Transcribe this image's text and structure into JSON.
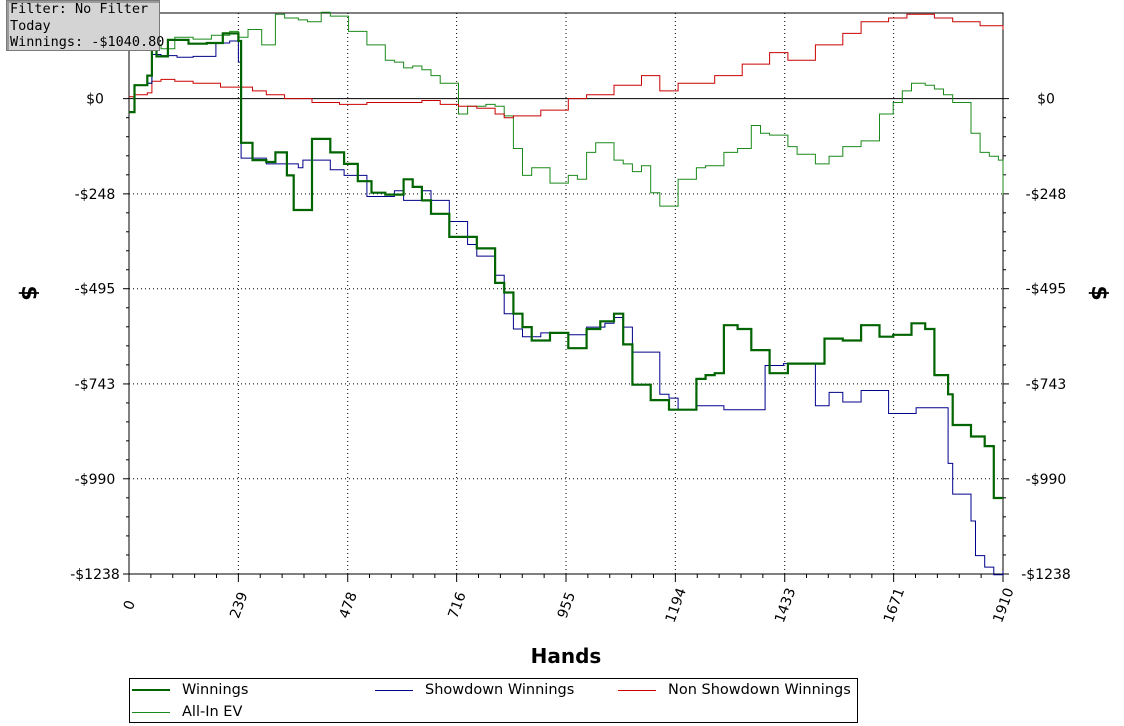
{
  "info_box": {
    "filter": "Filter: No Filter",
    "period": "Today",
    "winnings": "Winnings: -$1040.80"
  },
  "legend": {
    "items": [
      {
        "label": "Winnings",
        "color": "#006400"
      },
      {
        "label": "Showdown Winnings",
        "color": "#00008b"
      },
      {
        "label": "Non Showdown Winnings",
        "color": "#cc0000"
      },
      {
        "label": "All-In EV",
        "color": "#1a8a1a"
      }
    ]
  },
  "chart_data": {
    "type": "line",
    "xlabel": "Hands",
    "ylabel": "$",
    "xlim": [
      0,
      1910
    ],
    "ylim": [
      -1238,
      223
    ],
    "x_ticks": [
      0,
      239,
      478,
      716,
      955,
      1194,
      1433,
      1671,
      1910
    ],
    "y_ticks": [
      0,
      -248,
      -495,
      -743,
      -990,
      -1238
    ],
    "y_tick_labels": [
      "$0",
      "-$248",
      "-$495",
      "-$743",
      "-$990",
      "-$1238"
    ],
    "grid": true,
    "legend_position": "bottom",
    "series": [
      {
        "name": "Winnings",
        "color": "#006400",
        "x": [
          0,
          12,
          40,
          50,
          60,
          85,
          130,
          170,
          205,
          220,
          239,
          245,
          270,
          300,
          320,
          345,
          360,
          400,
          420,
          440,
          470,
          500,
          530,
          560,
          580,
          600,
          620,
          640,
          660,
          700,
          740,
          760,
          800,
          820,
          840,
          860,
          880,
          920,
          960,
          980,
          1000,
          1030,
          1060,
          1080,
          1100,
          1140,
          1180,
          1200,
          1240,
          1260,
          1280,
          1300,
          1330,
          1360,
          1400,
          1440,
          1480,
          1520,
          1560,
          1600,
          1640,
          1670,
          1710,
          1740,
          1760,
          1790,
          1800,
          1840,
          1870,
          1890,
          1910
        ],
        "y": [
          -35,
          35,
          60,
          148,
          110,
          153,
          143,
          145,
          170,
          170,
          150,
          -115,
          -160,
          -165,
          -140,
          -200,
          -290,
          -105,
          -105,
          -140,
          -170,
          -215,
          -245,
          -250,
          -250,
          -210,
          -230,
          -265,
          -300,
          -360,
          -360,
          -390,
          -480,
          -505,
          -560,
          -595,
          -630,
          -610,
          -650,
          -650,
          -600,
          -580,
          -560,
          -640,
          -745,
          -785,
          -810,
          -810,
          -730,
          -720,
          -715,
          -590,
          -600,
          -655,
          -715,
          -690,
          -690,
          -625,
          -630,
          -590,
          -620,
          -615,
          -585,
          -600,
          -720,
          -770,
          -850,
          -880,
          -905,
          -1040,
          -1040
        ]
      },
      {
        "name": "Showdown Winnings",
        "color": "#00008b",
        "x": [
          0,
          12,
          40,
          50,
          70,
          105,
          140,
          190,
          210,
          220,
          239,
          245,
          300,
          370,
          380,
          440,
          470,
          520,
          560,
          580,
          600,
          640,
          660,
          700,
          740,
          760,
          800,
          820,
          840,
          860,
          900,
          960,
          1000,
          1040,
          1060,
          1080,
          1100,
          1160,
          1180,
          1200,
          1240,
          1300,
          1390,
          1430,
          1500,
          1530,
          1560,
          1600,
          1660,
          1720,
          1790,
          1800,
          1840,
          1850,
          1870,
          1890,
          1910
        ],
        "y": [
          -35,
          35,
          40,
          115,
          112,
          108,
          110,
          145,
          145,
          150,
          95,
          -155,
          -170,
          -180,
          -160,
          -185,
          -200,
          -255,
          -255,
          -240,
          -265,
          -240,
          -265,
          -320,
          -380,
          -410,
          -460,
          -560,
          -600,
          -620,
          -610,
          -615,
          -595,
          -585,
          -570,
          -595,
          -660,
          -770,
          -780,
          -810,
          -800,
          -810,
          -695,
          -690,
          -800,
          -765,
          -790,
          -760,
          -820,
          -805,
          -950,
          -1030,
          -1100,
          -1190,
          -1220,
          -1240,
          -1230
        ]
      },
      {
        "name": "Non Showdown Winnings",
        "color": "#cc0000",
        "x": [
          0,
          12,
          40,
          50,
          70,
          100,
          140,
          200,
          239,
          270,
          300,
          340,
          400,
          460,
          520,
          580,
          640,
          680,
          720,
          760,
          800,
          820,
          840,
          900,
          960,
          1000,
          1060,
          1120,
          1160,
          1200,
          1280,
          1340,
          1400,
          1440,
          1500,
          1560,
          1600,
          1660,
          1700,
          1760,
          1800,
          1860,
          1910
        ],
        "y": [
          5,
          10,
          15,
          45,
          50,
          45,
          40,
          30,
          30,
          20,
          10,
          0,
          -10,
          -15,
          -10,
          -10,
          -5,
          -15,
          -20,
          -25,
          -40,
          -50,
          -45,
          -30,
          0,
          10,
          35,
          60,
          20,
          40,
          60,
          90,
          120,
          100,
          140,
          170,
          200,
          210,
          220,
          210,
          200,
          190,
          180
        ]
      },
      {
        "name": "All-In EV",
        "color": "#1a8a1a",
        "x": [
          0,
          12,
          40,
          50,
          70,
          100,
          140,
          180,
          220,
          239,
          260,
          290,
          320,
          340,
          370,
          390,
          420,
          440,
          480,
          520,
          560,
          580,
          600,
          620,
          640,
          660,
          680,
          720,
          740,
          780,
          800,
          820,
          840,
          860,
          880,
          920,
          960,
          980,
          1000,
          1020,
          1060,
          1080,
          1100,
          1120,
          1140,
          1160,
          1200,
          1240,
          1260,
          1300,
          1330,
          1360,
          1380,
          1400,
          1440,
          1460,
          1500,
          1530,
          1560,
          1600,
          1640,
          1670,
          1690,
          1710,
          1740,
          1760,
          1780,
          1800,
          1840,
          1860,
          1880,
          1900,
          1910
        ],
        "y": [
          -35,
          35,
          40,
          140,
          130,
          160,
          155,
          165,
          175,
          160,
          180,
          140,
          220,
          210,
          205,
          200,
          225,
          215,
          175,
          140,
          100,
          95,
          80,
          85,
          75,
          60,
          40,
          -40,
          -20,
          -15,
          -20,
          -45,
          -130,
          -200,
          -180,
          -220,
          -200,
          -210,
          -140,
          -115,
          -160,
          -170,
          -190,
          -175,
          -245,
          -280,
          -210,
          -180,
          -175,
          -140,
          -130,
          -70,
          -90,
          -95,
          -125,
          -145,
          -170,
          -150,
          -125,
          -110,
          -40,
          -10,
          20,
          40,
          35,
          25,
          10,
          -10,
          -90,
          -140,
          -150,
          -160,
          -250
        ]
      }
    ]
  }
}
